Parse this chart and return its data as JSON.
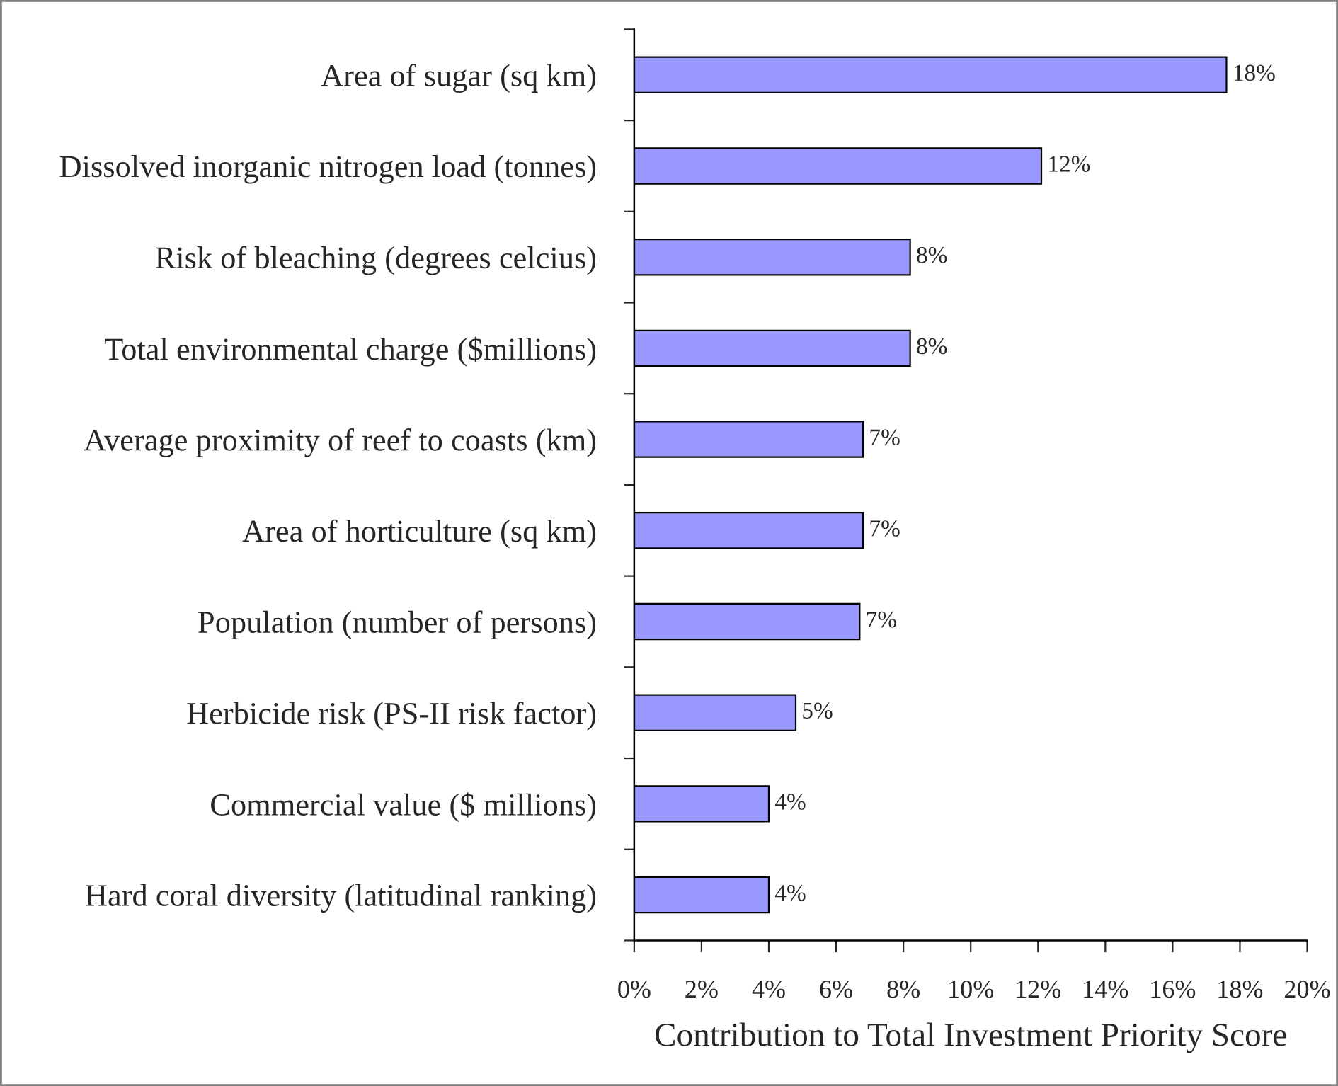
{
  "chart_data": {
    "type": "bar",
    "orientation": "horizontal",
    "categories": [
      "Area of sugar (sq km)",
      "Dissolved inorganic nitrogen load (tonnes)",
      "Risk of bleaching (degrees celcius)",
      "Total environmental charge ($millions)",
      "Average proximity of reef to coasts (km)",
      "Area of horticulture (sq km)",
      "Population (number of persons)",
      "Herbicide risk (PS-II risk factor)",
      "Commercial value ($ millions)",
      "Hard coral diversity (latitudinal ranking)"
    ],
    "values": [
      17.6,
      12.1,
      8.2,
      8.2,
      6.8,
      6.8,
      6.7,
      4.8,
      4.0,
      4.0
    ],
    "value_labels": [
      "18%",
      "12%",
      "8%",
      "8%",
      "7%",
      "7%",
      "7%",
      "5%",
      "4%",
      "4%"
    ],
    "color": "#9999ff",
    "xlabel": "Contribution to Total Investment Priority Score",
    "xlim": [
      0,
      20
    ],
    "xticks": [
      {
        "value": 0,
        "label": "0%"
      },
      {
        "value": 2,
        "label": "2%"
      },
      {
        "value": 4,
        "label": "4%"
      },
      {
        "value": 6,
        "label": "6%"
      },
      {
        "value": 8,
        "label": "8%"
      },
      {
        "value": 10,
        "label": "10%"
      },
      {
        "value": 12,
        "label": "12%"
      },
      {
        "value": 14,
        "label": "14%"
      },
      {
        "value": 16,
        "label": "16%"
      },
      {
        "value": 18,
        "label": "18%"
      },
      {
        "value": 20,
        "label": "20%"
      }
    ]
  }
}
